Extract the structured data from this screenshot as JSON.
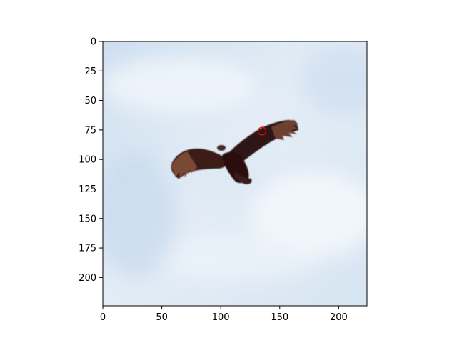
{
  "figure": {
    "background": "#ffffff",
    "axis_color": "#000000"
  },
  "image": {
    "subject": "bird-soaring-in-sky",
    "colors": {
      "sky_light": "#e9f1f8",
      "sky_mid": "#d3e2f0",
      "sky_shade": "#bfd3e8",
      "bird_dark": "#2a0f10",
      "bird_brown": "#6b3a2a",
      "bird_wingtip": "#8a5a45"
    }
  },
  "marker": {
    "x": 135,
    "y": 76,
    "shape": "circle",
    "color": "#ff0000"
  },
  "chart_data": {
    "type": "image",
    "xlim": [
      0,
      224
    ],
    "ylim": [
      224,
      0
    ],
    "xticks": [
      0,
      50,
      100,
      150,
      200
    ],
    "yticks": [
      0,
      25,
      50,
      75,
      100,
      125,
      150,
      175,
      200
    ],
    "xtick_labels": [
      "0",
      "50",
      "100",
      "150",
      "200"
    ],
    "ytick_labels": [
      "0",
      "25",
      "50",
      "75",
      "100",
      "125",
      "150",
      "175",
      "200"
    ],
    "points": [
      {
        "x": 135,
        "y": 76,
        "marker": "circle",
        "color": "#ff0000"
      }
    ]
  }
}
